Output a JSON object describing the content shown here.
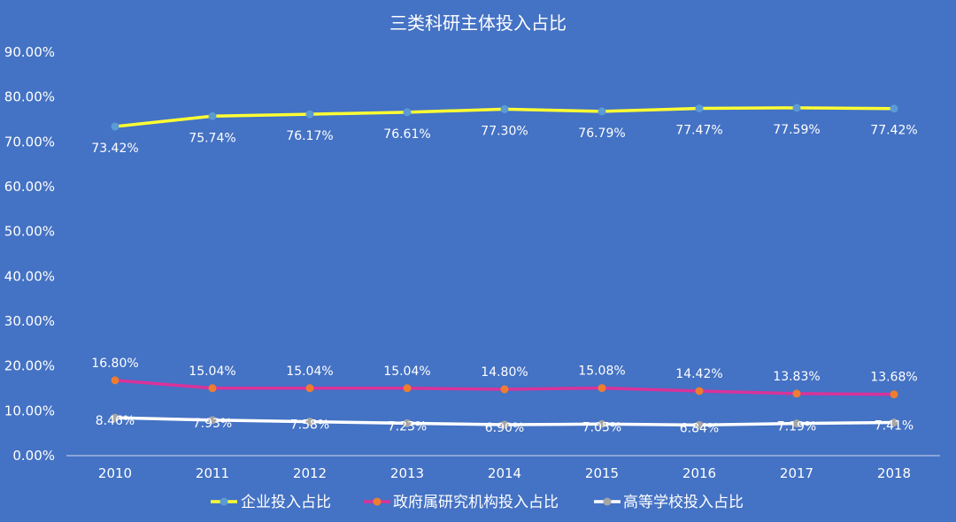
{
  "chart_data": {
    "type": "line",
    "title": "三类科研主体投入占比",
    "xlabel": "",
    "ylabel": "",
    "categories": [
      "2010",
      "2011",
      "2012",
      "2013",
      "2014",
      "2015",
      "2016",
      "2017",
      "2018"
    ],
    "ylim": [
      0,
      90
    ],
    "yticks": [
      "0.00%",
      "10.00%",
      "20.00%",
      "30.00%",
      "40.00%",
      "50.00%",
      "60.00%",
      "70.00%",
      "80.00%",
      "90.00%"
    ],
    "grid": false,
    "legend_position": "bottom",
    "series": [
      {
        "name": "企业投入占比",
        "color": "#ffff33",
        "marker_color": "#5b9bd5",
        "values": [
          73.42,
          75.74,
          76.17,
          76.61,
          77.3,
          76.79,
          77.47,
          77.59,
          77.42
        ],
        "labels": [
          "73.42%",
          "75.74%",
          "76.17%",
          "76.61%",
          "77.30%",
          "76.79%",
          "77.47%",
          "77.59%",
          "77.42%"
        ]
      },
      {
        "name": "政府属研究机构投入占比",
        "color": "#d9339a",
        "marker_color": "#ed7d31",
        "values": [
          16.8,
          15.04,
          15.04,
          15.04,
          14.8,
          15.08,
          14.42,
          13.83,
          13.68
        ],
        "labels": [
          "16.80%",
          "15.04%",
          "15.04%",
          "15.04%",
          "14.80%",
          "15.08%",
          "14.42%",
          "13.83%",
          "13.68%"
        ]
      },
      {
        "name": "高等学校投入占比",
        "color": "#ffffff",
        "marker_color": "#a5a5a5",
        "values": [
          8.46,
          7.93,
          7.58,
          7.23,
          6.9,
          7.05,
          6.84,
          7.19,
          7.41
        ],
        "labels": [
          "8.46%",
          "7.93%",
          "7.58%",
          "7.23%",
          "6.90%",
          "7.05%",
          "6.84%",
          "7.19%",
          "7.41%"
        ]
      }
    ]
  }
}
